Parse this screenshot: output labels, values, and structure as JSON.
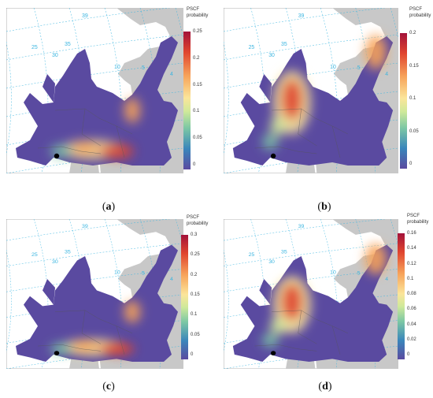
{
  "legend_title": "PSCF",
  "legend_subtitle": "probability",
  "colors": {
    "ocean": "#ffffff",
    "land": "#c8c8c8",
    "grid": "#3ab5e0",
    "low": "#5a4aa0",
    "high": "#c81e2c",
    "marker": "#000000"
  },
  "panels": [
    {
      "caption_open": "(",
      "caption_letter": "a",
      "caption_close": ")",
      "ticks": [
        "0.25",
        "0.2",
        "0.15",
        "0.1",
        "0.05",
        "0"
      ],
      "grid_labels": [
        "39",
        "25",
        "35",
        "30",
        "15",
        "10",
        "5",
        "0",
        "4",
        "25",
        "20",
        "5",
        "15"
      ],
      "hotspots": "south"
    },
    {
      "caption_open": "(",
      "caption_letter": "b",
      "caption_close": ")",
      "ticks": [
        "0.2",
        "0.15",
        "0.1",
        "0.05",
        "0"
      ],
      "grid_labels": [
        "39",
        "25",
        "35",
        "30",
        "15",
        "10",
        "5",
        "0",
        "4",
        "25",
        "20",
        "5",
        "15"
      ],
      "hotspots": "north"
    },
    {
      "caption_open": "(",
      "caption_letter": "c",
      "caption_close": ")",
      "ticks": [
        "0.3",
        "0.25",
        "0.2",
        "0.15",
        "0.1",
        "0.05",
        "0"
      ],
      "grid_labels": [
        "39",
        "25",
        "35",
        "30",
        "15",
        "10",
        "5",
        "0",
        "4",
        "25",
        "20",
        "5",
        "15"
      ],
      "hotspots": "south"
    },
    {
      "caption_open": "(",
      "caption_letter": "d",
      "caption_close": ")",
      "ticks": [
        "0.16",
        "0.14",
        "0.12",
        "0.1",
        "0.08",
        "0.06",
        "0.04",
        "0.02",
        "0"
      ],
      "grid_labels": [
        "39",
        "25",
        "35",
        "30",
        "15",
        "10",
        "5",
        "0",
        "4",
        "25",
        "20",
        "5",
        "15"
      ],
      "hotspots": "north"
    }
  ]
}
